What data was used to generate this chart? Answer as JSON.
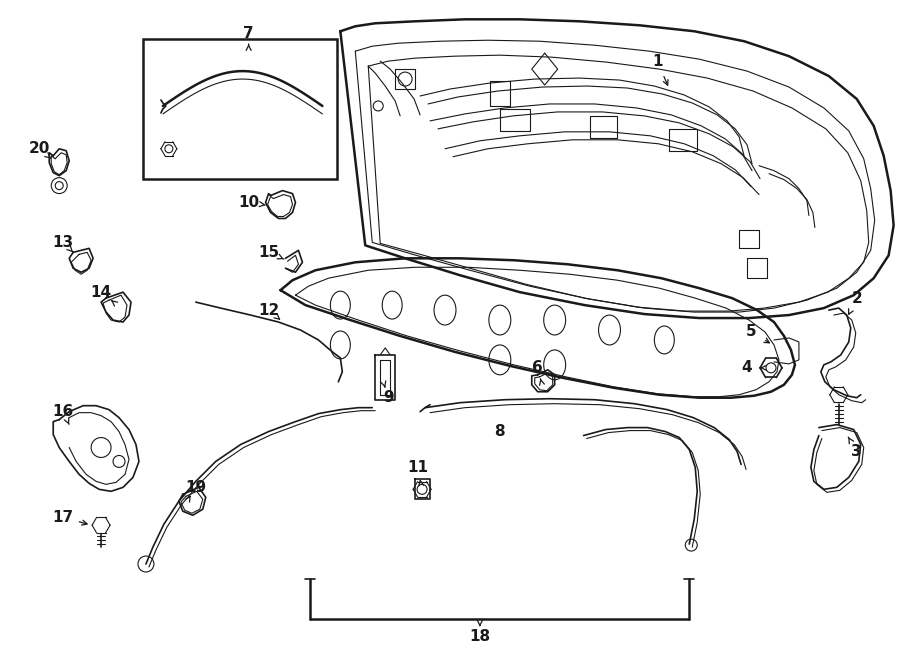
{
  "background_color": "#ffffff",
  "line_color": "#1a1a1a",
  "lw_main": 1.8,
  "lw_med": 1.2,
  "lw_thin": 0.8,
  "figsize": [
    9.0,
    6.61
  ],
  "dpi": 100
}
